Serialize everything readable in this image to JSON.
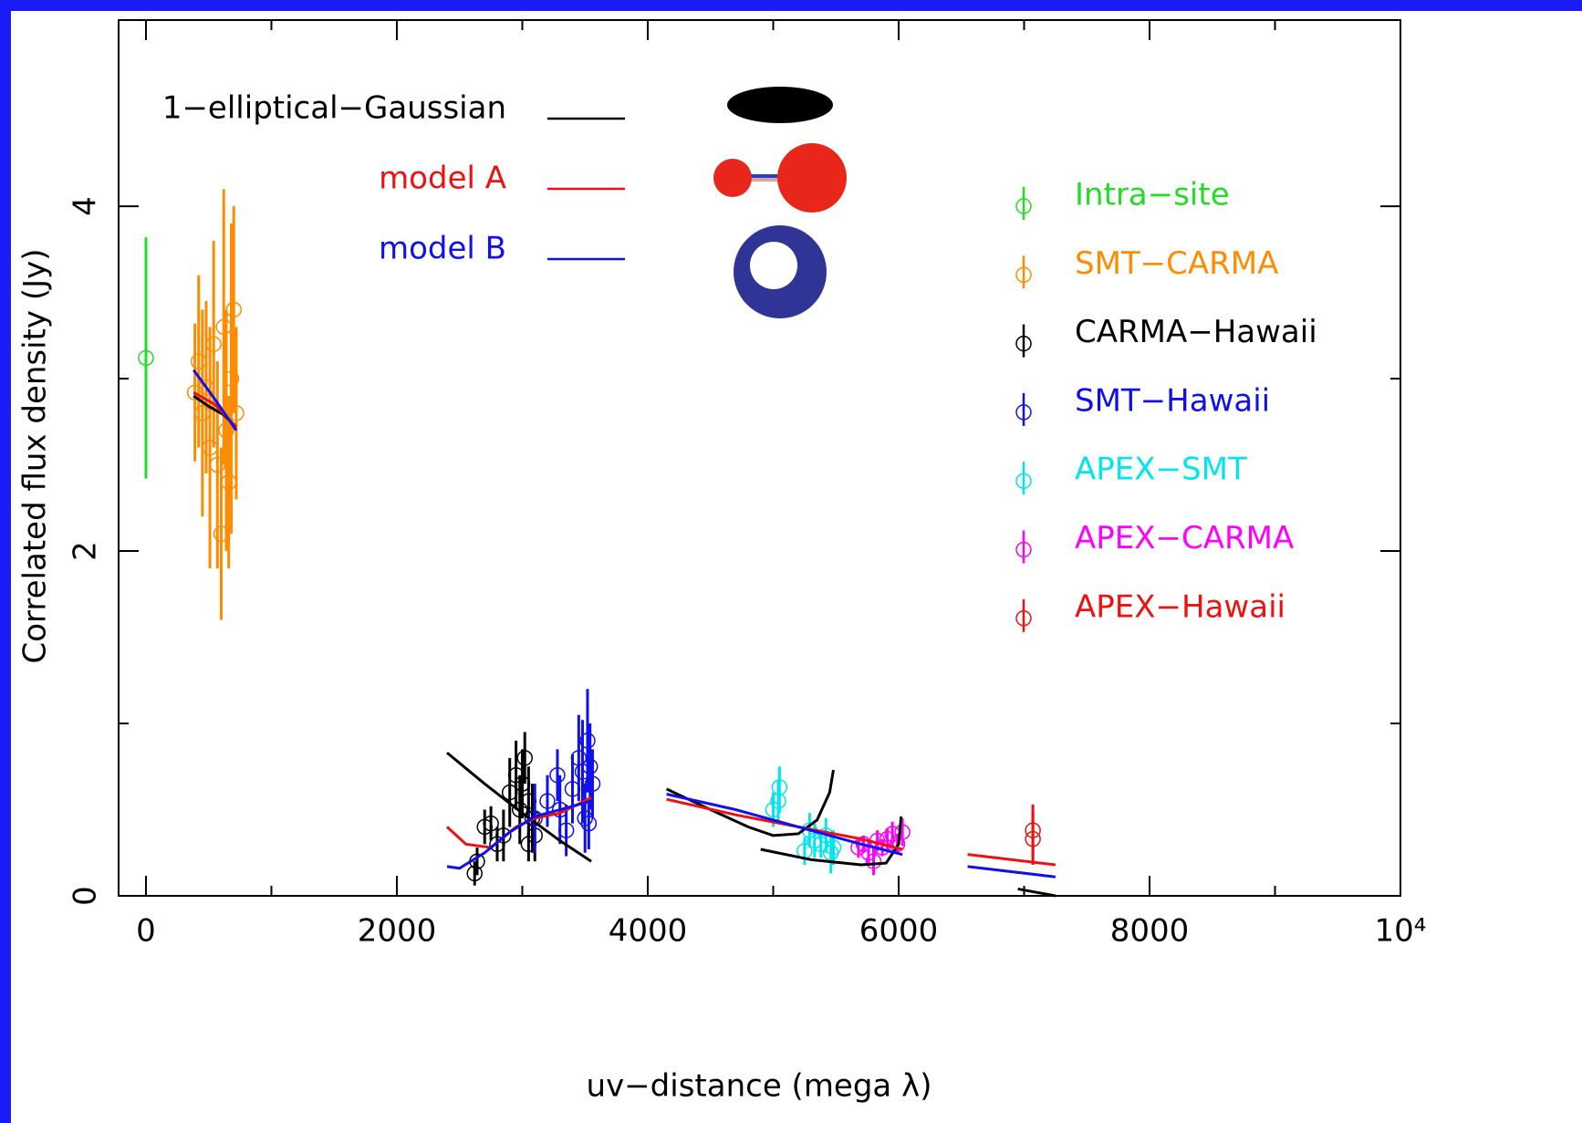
{
  "chart_data": {
    "type": "scatter",
    "xlabel": "uv−distance (mega λ)",
    "ylabel": "Correlated flux density (Jy)",
    "xlim": [
      -218,
      10000
    ],
    "ylim": [
      0,
      5.08
    ],
    "xticks": [
      0,
      2000,
      4000,
      6000,
      8000,
      {
        "value": 10000,
        "label": "10⁴"
      }
    ],
    "yticks": [
      0,
      2,
      4
    ],
    "xminorticks": [
      1000,
      3000,
      5000,
      7000,
      9000
    ],
    "yminorticks": [
      1,
      3
    ],
    "series": [
      {
        "name": "Intra−site",
        "color": "#22dd22",
        "x": [
          0
        ],
        "values": [
          3.12
        ],
        "errors": [
          0.7
        ]
      },
      {
        "name": "SMT−CARMA",
        "color": "#ff8c00",
        "x": [
          390,
          420,
          450,
          480,
          510,
          540,
          570,
          600,
          620,
          640,
          660,
          680,
          700,
          720
        ],
        "values": [
          2.92,
          3.1,
          2.8,
          2.95,
          2.6,
          3.2,
          2.5,
          2.1,
          3.3,
          2.7,
          2.4,
          3.0,
          3.4,
          2.8
        ],
        "errors": [
          0.4,
          0.5,
          0.6,
          0.5,
          0.7,
          0.6,
          0.6,
          0.5,
          0.8,
          0.7,
          0.5,
          0.9,
          0.6,
          0.5
        ]
      },
      {
        "name": "CARMA−Hawaii",
        "color": "#000000",
        "x": [
          2620,
          2640,
          2700,
          2750,
          2800,
          2850,
          2900,
          2950,
          3000,
          3020,
          3050,
          3080,
          3100,
          3050,
          2980
        ],
        "values": [
          0.13,
          0.2,
          0.4,
          0.42,
          0.3,
          0.35,
          0.6,
          0.7,
          0.65,
          0.8,
          0.55,
          0.45,
          0.35,
          0.3,
          0.5
        ],
        "errors": [
          0.07,
          0.08,
          0.1,
          0.1,
          0.1,
          0.15,
          0.2,
          0.2,
          0.2,
          0.15,
          0.2,
          0.2,
          0.15,
          0.1,
          0.2
        ]
      },
      {
        "name": "SMT−Hawaii",
        "color": "#1010ee",
        "x": [
          3100,
          3200,
          3280,
          3300,
          3350,
          3400,
          3450,
          3480,
          3500,
          3520,
          3540,
          3560,
          3530
        ],
        "values": [
          0.45,
          0.55,
          0.7,
          0.5,
          0.38,
          0.62,
          0.8,
          0.72,
          0.45,
          0.9,
          0.75,
          0.65,
          0.42
        ],
        "errors": [
          0.2,
          0.15,
          0.15,
          0.2,
          0.15,
          0.2,
          0.25,
          0.3,
          0.2,
          0.3,
          0.25,
          0.2,
          0.15
        ]
      },
      {
        "name": "APEX−SMT",
        "color": "#00e5ee",
        "x": [
          5000,
          5040,
          5050,
          5250,
          5290,
          5330,
          5380,
          5420,
          5460,
          5480
        ],
        "values": [
          0.5,
          0.55,
          0.63,
          0.26,
          0.38,
          0.32,
          0.3,
          0.35,
          0.25,
          0.28
        ],
        "errors": [
          0.1,
          0.12,
          0.12,
          0.08,
          0.1,
          0.1,
          0.08,
          0.1,
          0.12,
          0.1
        ]
      },
      {
        "name": "APEX−CARMA",
        "color": "#ff00ff",
        "x": [
          5680,
          5720,
          5760,
          5800,
          5830,
          5870,
          5910,
          5950,
          5990,
          6030
        ],
        "values": [
          0.28,
          0.3,
          0.25,
          0.2,
          0.32,
          0.28,
          0.33,
          0.36,
          0.3,
          0.37
        ],
        "errors": [
          0.06,
          0.05,
          0.07,
          0.08,
          0.06,
          0.05,
          0.06,
          0.07,
          0.06,
          0.08
        ]
      },
      {
        "name": "APEX−Hawaii",
        "color": "#ee1111",
        "x": [
          7070,
          7070
        ],
        "values": [
          0.38,
          0.33
        ],
        "errors": [
          0.15,
          0.15
        ]
      }
    ],
    "models": [
      {
        "name": "1−elliptical−Gaussian",
        "color": "#000000",
        "x": [
          380,
          500,
          620,
          720,
          null,
          2400,
          2700,
          3000,
          3300,
          3550,
          null,
          4150,
          4500,
          4800,
          5000,
          5200,
          5350,
          5450,
          5480,
          null,
          4900,
          5300,
          5700,
          5900,
          6000,
          6020,
          null,
          6950,
          7250
        ],
        "values": [
          2.9,
          2.84,
          2.79,
          2.72,
          null,
          0.83,
          0.65,
          0.48,
          0.32,
          0.2,
          null,
          0.62,
          0.5,
          0.4,
          0.35,
          0.36,
          0.44,
          0.6,
          0.73,
          null,
          0.27,
          0.21,
          0.18,
          0.19,
          0.3,
          0.46,
          null,
          0.04,
          0.0
        ]
      },
      {
        "name": "model A",
        "color": "#ee1111",
        "x": [
          380,
          550,
          720,
          null,
          2400,
          2550,
          2750,
          2950,
          3100,
          3300,
          3550,
          null,
          4150,
          4700,
          5200,
          5700,
          6030,
          null,
          6550,
          7250
        ],
        "values": [
          2.92,
          2.85,
          2.72,
          null,
          0.4,
          0.3,
          0.28,
          0.4,
          0.45,
          0.48,
          0.57,
          null,
          0.56,
          0.47,
          0.4,
          0.33,
          0.27,
          null,
          0.24,
          0.18
        ]
      },
      {
        "name": "model B",
        "color": "#1010ee",
        "x": [
          380,
          550,
          720,
          null,
          2400,
          2500,
          2700,
          2900,
          3100,
          3300,
          3550,
          null,
          4150,
          4700,
          5200,
          5700,
          6030,
          null,
          6550,
          7250
        ],
        "values": [
          3.05,
          2.88,
          2.7,
          null,
          0.17,
          0.16,
          0.25,
          0.37,
          0.46,
          0.5,
          0.55,
          null,
          0.59,
          0.5,
          0.4,
          0.3,
          0.24,
          null,
          0.17,
          0.11
        ]
      }
    ]
  }
}
